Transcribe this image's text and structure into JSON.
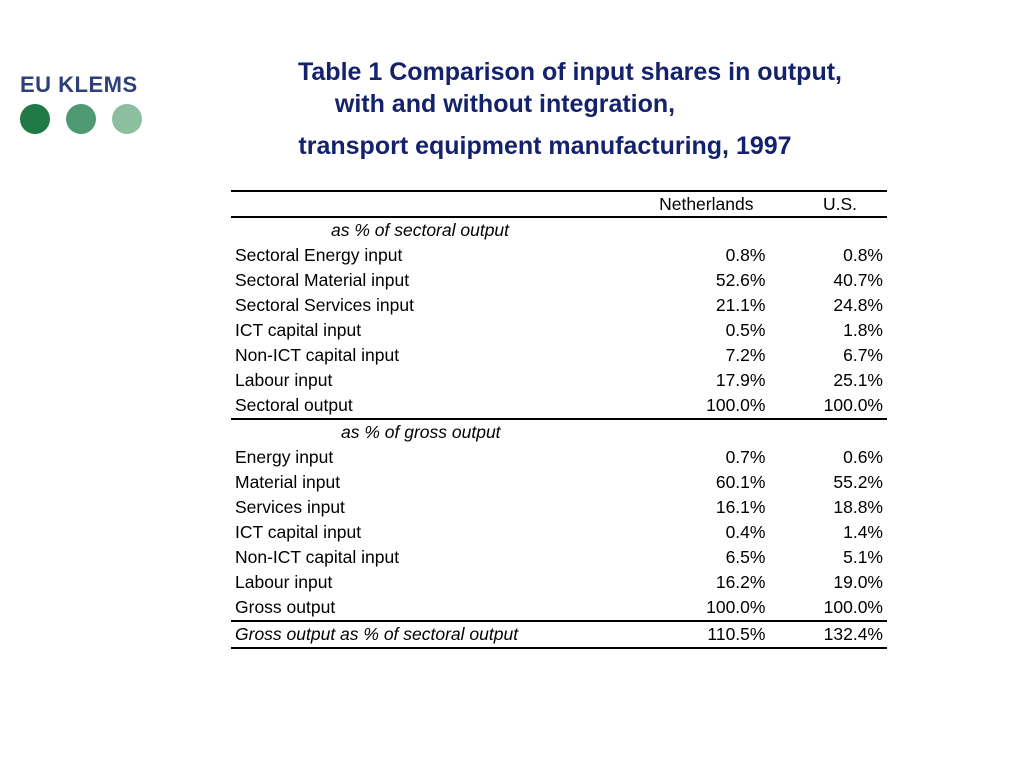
{
  "logo": {
    "text": "EU KLEMS",
    "dot_colors": [
      "#1f7a45",
      "#4f9a72",
      "#8bbf9f"
    ]
  },
  "title": {
    "line1": "Table 1  Comparison of input shares in output,",
    "line2": "with and without integration,",
    "line3": "transport equipment manufacturing, 1997"
  },
  "table": {
    "headers": {
      "country1": "Netherlands",
      "country2": "U.S."
    },
    "section1": {
      "title": "as % of sectoral output",
      "rows": [
        {
          "label": "Sectoral Energy input",
          "nl": "0.8%",
          "us": "0.8%"
        },
        {
          "label": "Sectoral Material input",
          "nl": "52.6%",
          "us": "40.7%"
        },
        {
          "label": "Sectoral Services input",
          "nl": "21.1%",
          "us": "24.8%"
        },
        {
          "label": "ICT capital input",
          "nl": "0.5%",
          "us": "1.8%"
        },
        {
          "label": "Non-ICT capital input",
          "nl": "7.2%",
          "us": "6.7%"
        },
        {
          "label": "Labour input",
          "nl": "17.9%",
          "us": "25.1%"
        },
        {
          "label": "Sectoral output",
          "nl": "100.0%",
          "us": "100.0%"
        }
      ]
    },
    "section2": {
      "title": "as % of gross output",
      "rows": [
        {
          "label": "Energy input",
          "nl": "0.7%",
          "us": "0.6%"
        },
        {
          "label": "Material input",
          "nl": "60.1%",
          "us": "55.2%"
        },
        {
          "label": "Services input",
          "nl": "16.1%",
          "us": "18.8%"
        },
        {
          "label": "ICT capital input",
          "nl": "0.4%",
          "us": "1.4%"
        },
        {
          "label": "Non-ICT capital input",
          "nl": "6.5%",
          "us": "5.1%"
        },
        {
          "label": "Labour input",
          "nl": "16.2%",
          "us": "19.0%"
        },
        {
          "label": "Gross output",
          "nl": "100.0%",
          "us": "100.0%"
        }
      ]
    },
    "final": {
      "label": "Gross output as % of sectoral output",
      "nl": "110.5%",
      "us": "132.4%"
    }
  }
}
